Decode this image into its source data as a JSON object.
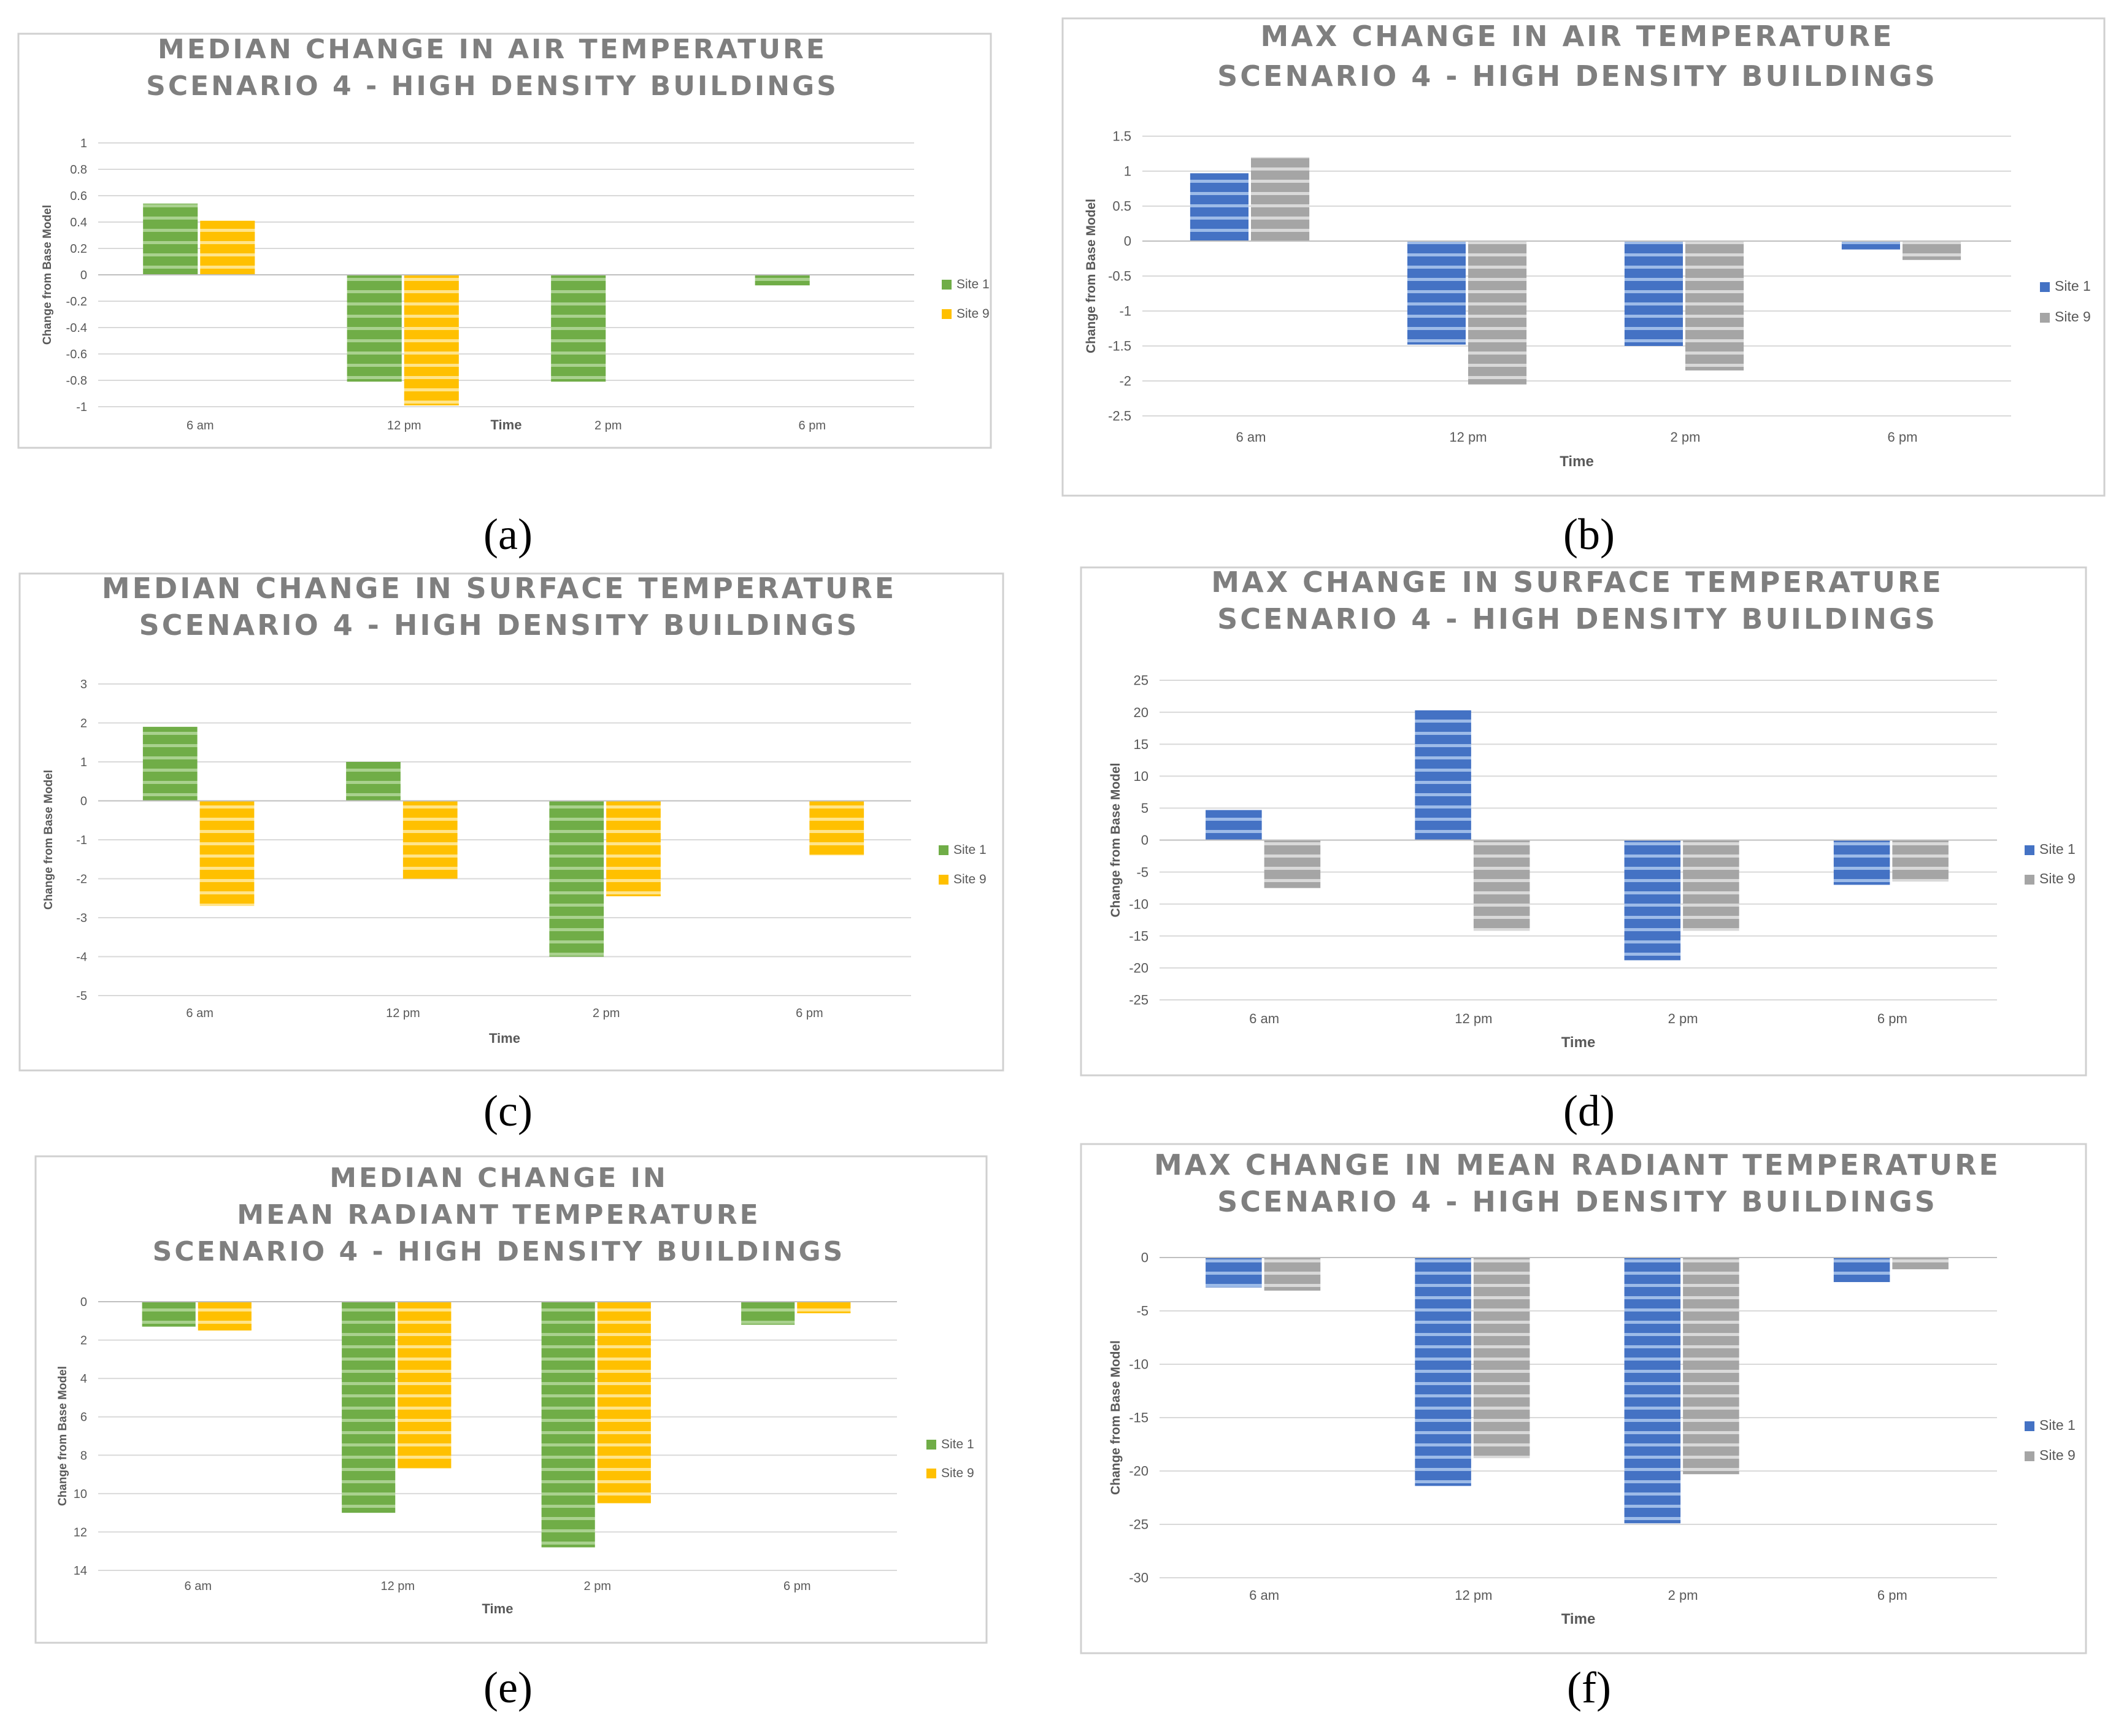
{
  "panel_labels": [
    "(a)",
    "(b)",
    "(c)",
    "(d)",
    "(e)",
    "(f)"
  ],
  "colors": {
    "site1_green": "#70ad47",
    "site9_yellow": "#ffc000",
    "site1_blue": "#4472c4",
    "site9_gray": "#a5a5a5",
    "grid": "#d9d9d9",
    "frame": "#d0d0d0"
  },
  "chart_data": [
    {
      "type": "bar",
      "title": [
        "MEDIAN CHANGE IN AIR TEMPERATURE",
        "SCENARIO 4 - HIGH DENSITY BUILDINGS"
      ],
      "categories": [
        "6 am",
        "12 pm",
        "2 pm",
        "6 pm"
      ],
      "series": [
        {
          "name": "Site 1",
          "values": [
            0.54,
            -0.81,
            -0.81,
            -0.08
          ]
        },
        {
          "name": "Site 9",
          "values": [
            0.41,
            -0.99,
            0,
            0
          ]
        }
      ],
      "ylim": [
        -1,
        1
      ],
      "yticks": [
        "1",
        "0.8",
        "0.6",
        "0.4",
        "0.2",
        "0",
        "-0.2",
        "-0.4",
        "-0.6",
        "-0.8",
        "-1"
      ],
      "xlabel": "Time",
      "ylabel": "Change from Base Model",
      "legend": "right",
      "palette": "green-yellow"
    },
    {
      "type": "bar",
      "title": [
        "MAX CHANGE IN AIR TEMPERATURE",
        "SCENARIO 4 - HIGH DENSITY BUILDINGS"
      ],
      "categories": [
        "6 am",
        "12 pm",
        "2 pm",
        "6 pm"
      ],
      "series": [
        {
          "name": "Site 1",
          "values": [
            0.97,
            -1.48,
            -1.5,
            -0.12
          ]
        },
        {
          "name": "Site 9",
          "values": [
            1.2,
            -2.05,
            -1.85,
            -0.27
          ]
        }
      ],
      "ylim": [
        -2.5,
        1.5
      ],
      "yticks": [
        "1.5",
        "1",
        "0.5",
        "0",
        "-0.5",
        "-1",
        "-1.5",
        "-2",
        "-2.5"
      ],
      "xlabel": "Time",
      "ylabel": "Change from Base Model",
      "legend": "right",
      "palette": "blue-gray"
    },
    {
      "type": "bar",
      "title": [
        "MEDIAN CHANGE IN SURFACE TEMPERATURE",
        "SCENARIO 4 - HIGH DENSITY BUILDINGS"
      ],
      "categories": [
        "6 am",
        "12 pm",
        "2 pm",
        "6 pm"
      ],
      "series": [
        {
          "name": "Site 1",
          "values": [
            1.9,
            1.0,
            -4.0,
            0
          ]
        },
        {
          "name": "Site 9",
          "values": [
            -2.7,
            -2.0,
            -2.45,
            -1.4
          ]
        }
      ],
      "ylim": [
        -5,
        3
      ],
      "yticks": [
        "3",
        "2",
        "1",
        "0",
        "-1",
        "-2",
        "-3",
        "-4",
        "-5"
      ],
      "xlabel": "Time",
      "ylabel": "Change from Base Model",
      "legend": "right",
      "palette": "green-yellow"
    },
    {
      "type": "bar",
      "title": [
        "MAX CHANGE IN SURFACE TEMPERATURE",
        "SCENARIO 4 - HIGH DENSITY BUILDINGS"
      ],
      "categories": [
        "6 am",
        "12 pm",
        "2 pm",
        "6 pm"
      ],
      "series": [
        {
          "name": "Site 1",
          "values": [
            4.7,
            20.3,
            -18.8,
            -7.0
          ]
        },
        {
          "name": "Site 9",
          "values": [
            -7.5,
            -14.2,
            -14.2,
            -6.5
          ]
        }
      ],
      "ylim": [
        -25,
        25
      ],
      "yticks": [
        "25",
        "20",
        "15",
        "10",
        "5",
        "0",
        "-5",
        "-10",
        "-15",
        "-20",
        "-25"
      ],
      "xlabel": "Time",
      "ylabel": "Change from Base Model",
      "legend": "right",
      "palette": "blue-gray"
    },
    {
      "type": "bar",
      "title": [
        "MEDIAN CHANGE IN",
        "MEAN RADIANT TEMPERATURE",
        "SCENARIO 4 - HIGH DENSITY BUILDINGS"
      ],
      "categories": [
        "6 am",
        "12 pm",
        "2 pm",
        "6 pm"
      ],
      "series": [
        {
          "name": "Site 1",
          "values": [
            -1.3,
            -11.0,
            -12.8,
            -1.2
          ]
        },
        {
          "name": "Site 9",
          "values": [
            -1.5,
            -8.7,
            -10.5,
            -0.6
          ]
        }
      ],
      "ylim": [
        -14,
        0
      ],
      "yticks": [
        "0",
        "2",
        "4",
        "6",
        "8",
        "10",
        "12",
        "14"
      ],
      "ytick_values": [
        0,
        -2,
        -4,
        -6,
        -8,
        -10,
        -12,
        -14
      ],
      "xlabel": "Time",
      "ylabel": "Change from Base Model",
      "legend": "right",
      "palette": "green-yellow"
    },
    {
      "type": "bar",
      "title": [
        "MAX CHANGE IN MEAN RADIANT TEMPERATURE",
        "SCENARIO 4 - HIGH DENSITY BUILDINGS"
      ],
      "categories": [
        "6 am",
        "12 pm",
        "2 pm",
        "6 pm"
      ],
      "series": [
        {
          "name": "Site 1",
          "values": [
            -2.8,
            -21.4,
            -24.9,
            -2.3
          ]
        },
        {
          "name": "Site 9",
          "values": [
            -3.1,
            -18.8,
            -20.3,
            -1.1
          ]
        }
      ],
      "ylim": [
        -30,
        0
      ],
      "yticks": [
        "0",
        "-5",
        "-10",
        "-15",
        "-20",
        "-25",
        "-30"
      ],
      "xlabel": "Time",
      "ylabel": "Change from Base Model",
      "legend": "right",
      "palette": "blue-gray"
    }
  ]
}
